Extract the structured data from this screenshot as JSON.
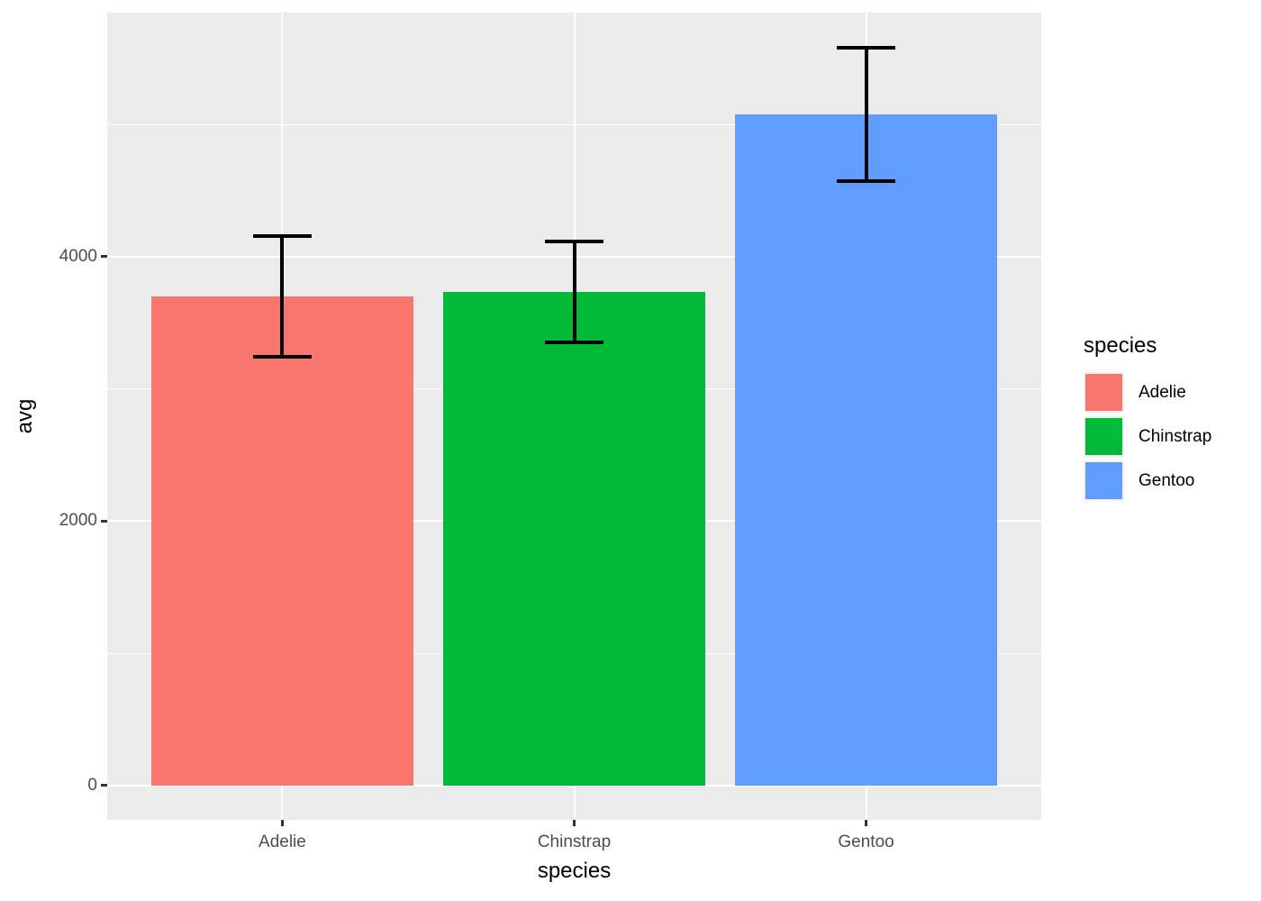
{
  "chart_data": {
    "type": "bar",
    "title": "",
    "categories": [
      "Adelie",
      "Chinstrap",
      "Gentoo"
    ],
    "values": [
      3700.66,
      3733.09,
      5076.02
    ],
    "error_low": [
      3242.09,
      3348.75,
      4571.9
    ],
    "error_high": [
      4159.23,
      4117.43,
      5580.14
    ],
    "xlabel": "species",
    "ylabel": "avg",
    "y_ticks": [
      {
        "value": 0,
        "label": "0"
      },
      {
        "value": 2000,
        "label": "2000"
      },
      {
        "value": 4000,
        "label": "4000"
      }
    ],
    "y_minor_ticks": [
      1000,
      3000,
      5000
    ],
    "ylim": [
      -261,
      5847
    ],
    "grid": true,
    "legend": {
      "title": "species",
      "position": "right",
      "entries": [
        {
          "label": "Adelie",
          "color": "#F8766D"
        },
        {
          "label": "Chinstrap",
          "color": "#00BA38"
        },
        {
          "label": "Gentoo",
          "color": "#619CFF"
        }
      ]
    },
    "colors": {
      "panel_background": "#EBEBEB",
      "gridline": "#FFFFFF",
      "bar_fills": [
        "#F8766D",
        "#00BA38",
        "#619CFF"
      ],
      "error_bar": "#000000",
      "axis_text": "#4D4D4D",
      "axis_title_text": "#000000",
      "tick_mark": "#333333"
    }
  }
}
